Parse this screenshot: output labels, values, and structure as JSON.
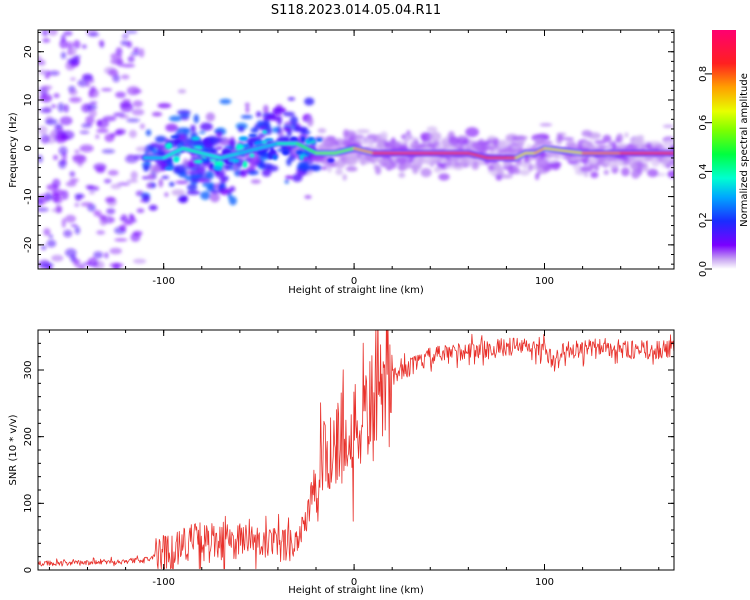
{
  "title": "S118.2023.014.05.04.R11",
  "colors": {
    "snr_line": "#e8302a",
    "axis": "#000000"
  },
  "chart_data": [
    {
      "type": "heatmap",
      "name": "spectrogram",
      "xlabel": "Height of straight line (km)",
      "ylabel": "Frequency (Hz)",
      "xlim": [
        -166,
        168
      ],
      "ylim": [
        -25,
        24.5
      ],
      "xticks": [
        -100,
        0,
        100
      ],
      "xtick_labels": [
        "-100",
        "0",
        "100"
      ],
      "yticks": [
        -20,
        -10,
        0,
        10,
        20
      ],
      "ytick_labels": [
        "-20",
        "-10",
        "0",
        "10",
        "20"
      ],
      "colorbar": {
        "label": "Normalized spectral amplitude",
        "range": [
          0.0,
          0.98
        ],
        "ticks": [
          0.0,
          0.2,
          0.4,
          0.6,
          0.8
        ],
        "tick_labels": [
          "0.0",
          "0.2",
          "0.4",
          "0.6",
          "0.8"
        ],
        "colormap": "gist_rainbow_r"
      },
      "ridge": {
        "x": [
          -110,
          -100,
          -90,
          -80,
          -70,
          -60,
          -50,
          -40,
          -30,
          -20,
          -10,
          0,
          10,
          20,
          40,
          60,
          70,
          80,
          85,
          90,
          95,
          100,
          120,
          140,
          160,
          168
        ],
        "freq": [
          -2,
          -2,
          0,
          -1,
          -2,
          -1,
          0,
          1,
          1,
          -1,
          -1,
          0,
          -1,
          -1,
          -1,
          -1,
          -2,
          -2,
          -2,
          -1,
          -1,
          0,
          -1,
          -1,
          -1,
          -1
        ],
        "amplitude": [
          0.3,
          0.35,
          0.4,
          0.4,
          0.35,
          0.35,
          0.3,
          0.35,
          0.45,
          0.6,
          0.55,
          0.6,
          0.9,
          0.95,
          0.95,
          0.9,
          0.9,
          0.9,
          0.8,
          0.6,
          0.8,
          0.7,
          0.7,
          0.9,
          0.95,
          0.9
        ]
      }
    },
    {
      "type": "line",
      "name": "snr",
      "xlabel": "Height of straight line (km)",
      "ylabel": "SNR (10 * v/v)",
      "xlim": [
        -166,
        168
      ],
      "ylim": [
        0,
        360
      ],
      "xticks": [
        -100,
        0,
        100
      ],
      "xtick_labels": [
        "-100",
        "0",
        "100"
      ],
      "yticks": [
        0,
        100,
        200,
        300
      ],
      "ytick_labels": [
        "0",
        "100",
        "200",
        "300"
      ],
      "series": [
        {
          "name": "SNR",
          "x": [
            -166,
            -150,
            -130,
            -110,
            -100,
            -90,
            -80,
            -70,
            -60,
            -50,
            -40,
            -30,
            -25,
            -20,
            -15,
            -10,
            -5,
            0,
            5,
            10,
            15,
            20,
            25,
            30,
            40,
            50,
            60,
            70,
            80,
            90,
            95,
            100,
            105,
            110,
            120,
            130,
            140,
            150,
            160,
            168
          ],
          "values": [
            10,
            10,
            12,
            15,
            25,
            40,
            45,
            40,
            45,
            40,
            35,
            45,
            80,
            120,
            170,
            200,
            190,
            200,
            230,
            250,
            270,
            290,
            300,
            305,
            320,
            325,
            330,
            330,
            335,
            335,
            330,
            330,
            310,
            330,
            330,
            335,
            330,
            330,
            330,
            330
          ]
        }
      ]
    }
  ]
}
